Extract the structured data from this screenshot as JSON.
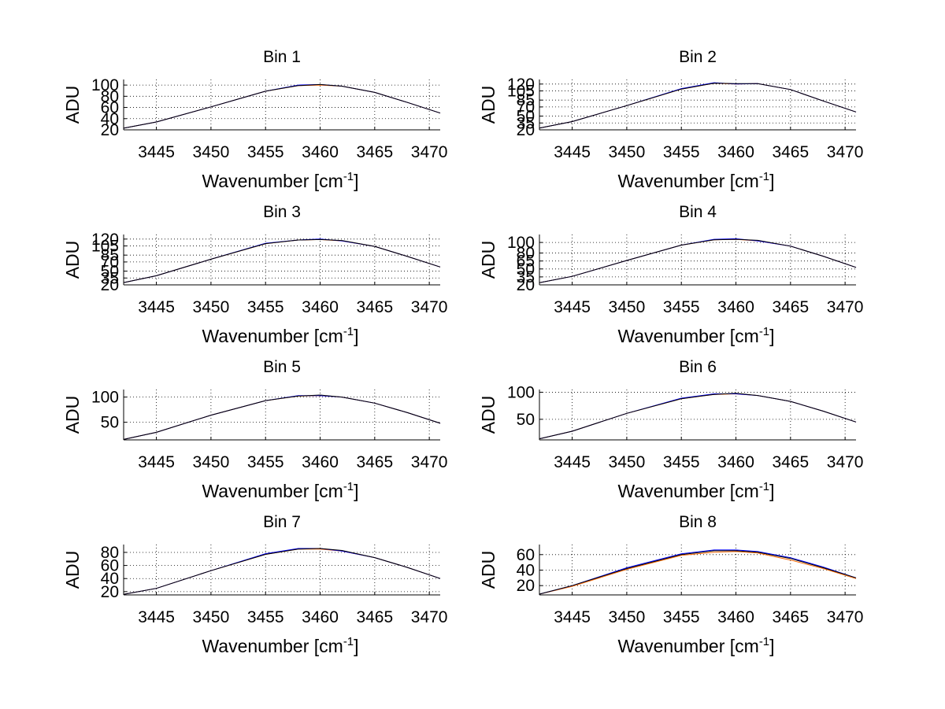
{
  "chart_data": [
    {
      "type": "line",
      "title": "Bin 1",
      "xlabel": "Wavenumber [cm",
      "xlabel_superscript": "-1",
      "xlabel_suffix": "]",
      "ylabel": "ADU",
      "xlim": [
        3442,
        3471
      ],
      "ylim": [
        20,
        110
      ],
      "xticks": [
        3445,
        3450,
        3455,
        3460,
        3465,
        3470
      ],
      "yticks": [
        20,
        40,
        60,
        80,
        100
      ],
      "ytick_labels": [
        "20",
        "40",
        "60",
        "80",
        "100"
      ],
      "grid": true,
      "x": [
        3442,
        3445,
        3450,
        3455,
        3458,
        3460,
        3462,
        3465,
        3468,
        3471
      ],
      "series": [
        {
          "color": "#ff6600",
          "values": [
            23,
            34,
            61,
            89,
            99,
            100,
            98,
            87,
            69,
            50
          ]
        },
        {
          "color": "#0000ff",
          "values": [
            23,
            34,
            61,
            89,
            100,
            101,
            98,
            87,
            69,
            50
          ]
        },
        {
          "color": "#000000",
          "values": [
            23,
            34,
            61,
            89,
            99,
            101,
            98,
            87,
            69,
            50
          ]
        }
      ]
    },
    {
      "type": "line",
      "title": "Bin 2",
      "xlabel": "Wavenumber [cm",
      "xlabel_superscript": "-1",
      "xlabel_suffix": "]",
      "ylabel": "ADU",
      "xlim": [
        3442,
        3471
      ],
      "ylim": [
        20,
        130
      ],
      "xticks": [
        3445,
        3450,
        3455,
        3460,
        3465,
        3470
      ],
      "yticks": [
        20,
        35,
        50,
        70,
        85,
        105,
        120
      ],
      "ytick_labels": [
        "20",
        "35",
        "50",
        "70",
        "85",
        "105",
        "120"
      ],
      "grid": true,
      "x": [
        3442,
        3445,
        3450,
        3455,
        3458,
        3460,
        3462,
        3465,
        3468,
        3471
      ],
      "series": [
        {
          "color": "#ff6600",
          "values": [
            24,
            38,
            73,
            109,
            122,
            120,
            121,
            108,
            83,
            59
          ]
        },
        {
          "color": "#0000ff",
          "values": [
            24,
            38,
            73,
            110,
            123,
            120,
            121,
            108,
            83,
            59
          ]
        },
        {
          "color": "#000000",
          "values": [
            24,
            38,
            73,
            109,
            122,
            121,
            121,
            108,
            83,
            59
          ]
        }
      ]
    },
    {
      "type": "line",
      "title": "Bin 3",
      "xlabel": "Wavenumber [cm",
      "xlabel_superscript": "-1",
      "xlabel_suffix": "]",
      "ylabel": "ADU",
      "xlim": [
        3442,
        3471
      ],
      "ylim": [
        20,
        130
      ],
      "xticks": [
        3445,
        3450,
        3455,
        3460,
        3465,
        3470
      ],
      "yticks": [
        20,
        35,
        50,
        70,
        85,
        105,
        120
      ],
      "ytick_labels": [
        "20",
        "35",
        "50",
        "70",
        "85",
        "105",
        "120"
      ],
      "grid": true,
      "x": [
        3442,
        3445,
        3450,
        3455,
        3458,
        3460,
        3462,
        3465,
        3468,
        3471
      ],
      "series": [
        {
          "color": "#ff6600",
          "values": [
            25,
            40,
            76,
            110,
            118,
            119,
            116,
            104,
            82,
            59
          ]
        },
        {
          "color": "#0000ff",
          "values": [
            25,
            40,
            76,
            111,
            118,
            120,
            116,
            104,
            82,
            59
          ]
        },
        {
          "color": "#000000",
          "values": [
            25,
            40,
            76,
            110,
            118,
            119,
            117,
            104,
            82,
            59
          ]
        }
      ]
    },
    {
      "type": "line",
      "title": "Bin 4",
      "xlabel": "Wavenumber [cm",
      "xlabel_superscript": "-1",
      "xlabel_suffix": "]",
      "ylabel": "ADU",
      "xlim": [
        3442,
        3471
      ],
      "ylim": [
        20,
        115
      ],
      "xticks": [
        3445,
        3450,
        3455,
        3460,
        3465,
        3470
      ],
      "yticks": [
        20,
        35,
        50,
        65,
        80,
        100
      ],
      "ytick_labels": [
        "20",
        "35",
        "50",
        "65",
        "80",
        "100"
      ],
      "grid": true,
      "x": [
        3442,
        3445,
        3450,
        3455,
        3458,
        3460,
        3462,
        3465,
        3468,
        3471
      ],
      "series": [
        {
          "color": "#ff6600",
          "values": [
            24,
            36,
            66,
            95,
            105,
            106,
            103,
            93,
            74,
            53
          ]
        },
        {
          "color": "#0000ff",
          "values": [
            24,
            36,
            66,
            95,
            106,
            107,
            103,
            93,
            74,
            53
          ]
        },
        {
          "color": "#000000",
          "values": [
            24,
            36,
            66,
            95,
            105,
            106,
            104,
            93,
            74,
            53
          ]
        }
      ]
    },
    {
      "type": "line",
      "title": "Bin 5",
      "xlabel": "Wavenumber [cm",
      "xlabel_superscript": "-1",
      "xlabel_suffix": "]",
      "ylabel": "ADU",
      "xlim": [
        3442,
        3471
      ],
      "ylim": [
        15,
        115
      ],
      "xticks": [
        3445,
        3450,
        3455,
        3460,
        3465,
        3470
      ],
      "yticks": [
        50,
        100
      ],
      "ytick_labels": [
        "50",
        "100"
      ],
      "grid": true,
      "x": [
        3442,
        3445,
        3450,
        3455,
        3458,
        3460,
        3462,
        3465,
        3468,
        3471
      ],
      "series": [
        {
          "color": "#ff6600",
          "values": [
            16,
            30,
            64,
            93,
            102,
            103,
            100,
            88,
            69,
            48
          ]
        },
        {
          "color": "#0000ff",
          "values": [
            16,
            30,
            64,
            93,
            103,
            103,
            100,
            88,
            69,
            48
          ]
        },
        {
          "color": "#000000",
          "values": [
            16,
            30,
            64,
            93,
            102,
            104,
            100,
            88,
            69,
            48
          ]
        }
      ]
    },
    {
      "type": "line",
      "title": "Bin 6",
      "xlabel": "Wavenumber [cm",
      "xlabel_superscript": "-1",
      "xlabel_suffix": "]",
      "ylabel": "ADU",
      "xlim": [
        3442,
        3471
      ],
      "ylim": [
        12,
        105
      ],
      "xticks": [
        3445,
        3450,
        3455,
        3460,
        3465,
        3470
      ],
      "yticks": [
        50,
        100
      ],
      "ytick_labels": [
        "50",
        "100"
      ],
      "grid": true,
      "x": [
        3442,
        3445,
        3450,
        3455,
        3458,
        3460,
        3462,
        3465,
        3468,
        3471
      ],
      "series": [
        {
          "color": "#ff6600",
          "values": [
            14,
            28,
            61,
            88,
            96,
            97,
            94,
            83,
            65,
            45
          ]
        },
        {
          "color": "#0000ff",
          "values": [
            14,
            28,
            61,
            89,
            97,
            97,
            94,
            83,
            65,
            45
          ]
        },
        {
          "color": "#000000",
          "values": [
            14,
            28,
            61,
            88,
            96,
            98,
            94,
            83,
            65,
            45
          ]
        }
      ]
    },
    {
      "type": "line",
      "title": "Bin 7",
      "xlabel": "Wavenumber [cm",
      "xlabel_superscript": "-1",
      "xlabel_suffix": "]",
      "ylabel": "ADU",
      "xlim": [
        3442,
        3471
      ],
      "ylim": [
        15,
        92
      ],
      "xticks": [
        3445,
        3450,
        3455,
        3460,
        3465,
        3470
      ],
      "yticks": [
        20,
        40,
        60,
        80
      ],
      "ytick_labels": [
        "20",
        "40",
        "60",
        "80"
      ],
      "grid": true,
      "x": [
        3442,
        3445,
        3450,
        3455,
        3458,
        3460,
        3462,
        3465,
        3468,
        3471
      ],
      "series": [
        {
          "color": "#ff6600",
          "values": [
            16,
            25,
            52,
            77,
            85,
            85,
            82,
            72,
            57,
            40
          ]
        },
        {
          "color": "#0000ff",
          "values": [
            16,
            25,
            52,
            78,
            86,
            86,
            82,
            72,
            57,
            40
          ]
        },
        {
          "color": "#000000",
          "values": [
            16,
            25,
            52,
            77,
            85,
            86,
            83,
            72,
            57,
            40
          ]
        }
      ]
    },
    {
      "type": "line",
      "title": "Bin 8",
      "xlabel": "Wavenumber [cm",
      "xlabel_superscript": "-1",
      "xlabel_suffix": "]",
      "ylabel": "ADU",
      "xlim": [
        3442,
        3471
      ],
      "ylim": [
        8,
        73
      ],
      "xticks": [
        3445,
        3450,
        3455,
        3460,
        3465,
        3470
      ],
      "yticks": [
        20,
        40,
        60
      ],
      "ytick_labels": [
        "20",
        "40",
        "60"
      ],
      "grid": true,
      "x": [
        3442,
        3445,
        3450,
        3455,
        3458,
        3460,
        3462,
        3465,
        3468,
        3471
      ],
      "series": [
        {
          "color": "#ff6600",
          "values": [
            9,
            19,
            41,
            59,
            63,
            64,
            62,
            53,
            42,
            29
          ]
        },
        {
          "color": "#0000ff",
          "values": [
            9,
            20,
            43,
            61,
            66,
            66,
            64,
            56,
            44,
            30
          ]
        },
        {
          "color": "#000000",
          "values": [
            9,
            20,
            42,
            60,
            65,
            65,
            63,
            55,
            43,
            30
          ]
        }
      ]
    }
  ]
}
